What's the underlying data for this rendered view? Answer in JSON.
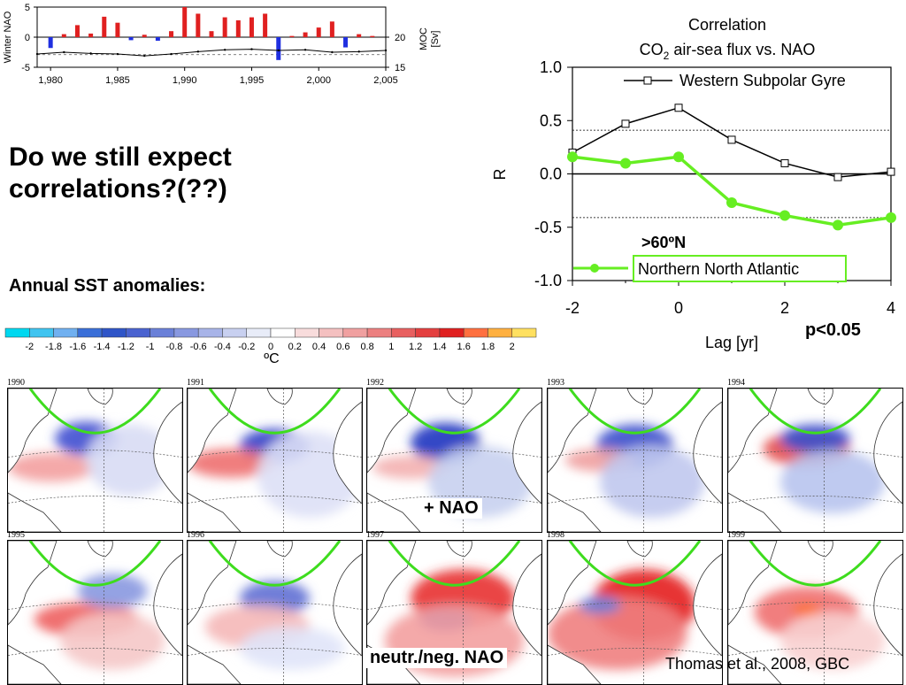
{
  "page": {
    "headline": "Do we still expect correlations?(??)",
    "sst_label": "Annual SST anomalies:",
    "p_value": "p<0.05",
    "positive_nao": "+ NAO",
    "neutral_negative_nao": "neutr./neg.  NAO",
    "credit": "Thomas et al., 2008, GBC"
  },
  "colorbar": {
    "unit": "ºC",
    "labels": [
      "-2",
      "-1.8",
      "-1.6",
      "-1.4",
      "-1.2",
      "-1",
      "-0.8",
      "-0.6",
      "-0.4",
      "-0.2",
      "0",
      "0.2",
      "0.4",
      "0.6",
      "0.8",
      "1",
      "1.2",
      "1.4",
      "1.6",
      "1.8",
      "2"
    ],
    "colors": [
      "#00d8f0",
      "#40c4f0",
      "#70b0f0",
      "#3a6fd8",
      "#2f55c8",
      "#4a63d0",
      "#6a80d8",
      "#8898e0",
      "#a8b4e8",
      "#c8d0f0",
      "#e8ecf8",
      "#ffffff",
      "#f8dcdc",
      "#f4c0c0",
      "#f0a0a0",
      "#ec8080",
      "#e86060",
      "#e44040",
      "#e02020",
      "#ff7040",
      "#ffb040",
      "#ffe060"
    ]
  },
  "maps": [
    {
      "year": "1990"
    },
    {
      "year": "1991"
    },
    {
      "year": "1992"
    },
    {
      "year": "1993"
    },
    {
      "year": "1994"
    },
    {
      "year": "1995"
    },
    {
      "year": "1996"
    },
    {
      "year": "1997"
    },
    {
      "year": "1998"
    },
    {
      "year": "1999"
    }
  ],
  "chart_data": [
    {
      "type": "bar",
      "ylabel": "Winter NAO",
      "right_ylabel": "MOC\n[Sv]",
      "x_ticks": [
        "1,980",
        "1,985",
        "1,990",
        "1,995",
        "2,000",
        "2,005"
      ],
      "y_ticks": [
        "5",
        "0",
        "-5"
      ],
      "right_y_ticks": [
        "20",
        "15"
      ],
      "ylim": [
        -5,
        5
      ],
      "xlim": [
        1979,
        2005
      ],
      "colors": {
        "positive": "#e02020",
        "negative": "#1f2fe0"
      },
      "nao_values": [
        {
          "x": 1980,
          "y": -1.8
        },
        {
          "x": 1981,
          "y": 0.5
        },
        {
          "x": 1982,
          "y": 2.0
        },
        {
          "x": 1983,
          "y": 0.6
        },
        {
          "x": 1984,
          "y": 3.4
        },
        {
          "x": 1985,
          "y": 2.4
        },
        {
          "x": 1986,
          "y": -0.5
        },
        {
          "x": 1987,
          "y": 0.4
        },
        {
          "x": 1988,
          "y": -0.6
        },
        {
          "x": 1989,
          "y": 1.0
        },
        {
          "x": 1990,
          "y": 5.0
        },
        {
          "x": 1991,
          "y": 3.9
        },
        {
          "x": 1992,
          "y": 1.0
        },
        {
          "x": 1993,
          "y": 3.3
        },
        {
          "x": 1994,
          "y": 2.8
        },
        {
          "x": 1995,
          "y": 3.3
        },
        {
          "x": 1996,
          "y": 3.9
        },
        {
          "x": 1997,
          "y": -3.8
        },
        {
          "x": 1998,
          "y": 0.2
        },
        {
          "x": 1999,
          "y": 0.8
        },
        {
          "x": 2000,
          "y": 1.6
        },
        {
          "x": 2001,
          "y": 2.6
        },
        {
          "x": 2002,
          "y": -1.7
        },
        {
          "x": 2003,
          "y": 0.5
        },
        {
          "x": 2004,
          "y": 0.2
        }
      ],
      "moc_series": [
        {
          "x": 1979,
          "y": 17.2
        },
        {
          "x": 1981,
          "y": 17.5
        },
        {
          "x": 1983,
          "y": 17.3
        },
        {
          "x": 1985,
          "y": 17.2
        },
        {
          "x": 1987,
          "y": 16.9
        },
        {
          "x": 1989,
          "y": 17.2
        },
        {
          "x": 1991,
          "y": 17.6
        },
        {
          "x": 1993,
          "y": 17.9
        },
        {
          "x": 1995,
          "y": 18.0
        },
        {
          "x": 1997,
          "y": 17.8
        },
        {
          "x": 1999,
          "y": 17.9
        },
        {
          "x": 2001,
          "y": 17.5
        },
        {
          "x": 2003,
          "y": 17.6
        },
        {
          "x": 2005,
          "y": 17.8
        }
      ]
    },
    {
      "type": "line",
      "title_line1": "Correlation",
      "title_line2_pre": "CO",
      "title_line2_sub": "2",
      "title_line2_post": " air-sea flux vs. NAO",
      "xlabel": "Lag [yr]",
      "ylabel": "R",
      "xlim": [
        -2,
        4
      ],
      "ylim": [
        -1.0,
        1.0
      ],
      "x_ticks": [
        "-2",
        "0",
        "2",
        "4"
      ],
      "y_ticks": [
        "1.0",
        "0.5",
        "0.0",
        "-0.5",
        "-1.0"
      ],
      "significance": [
        0.41,
        -0.41
      ],
      "annotation": ">60ºN",
      "series": [
        {
          "name": "Western Subpolar Gyre",
          "color": "#000000",
          "marker": "square",
          "x": [
            -2,
            -1,
            0,
            1,
            2,
            3,
            4
          ],
          "values": [
            0.2,
            0.47,
            0.62,
            0.32,
            0.1,
            -0.03,
            0.02
          ]
        },
        {
          "name": "Northern North Atlantic",
          "color": "#66ee22",
          "marker": "circle",
          "x": [
            -2,
            -1,
            0,
            1,
            2,
            3,
            4
          ],
          "values": [
            0.16,
            0.1,
            0.16,
            -0.27,
            -0.39,
            -0.48,
            -0.41
          ]
        }
      ]
    }
  ]
}
